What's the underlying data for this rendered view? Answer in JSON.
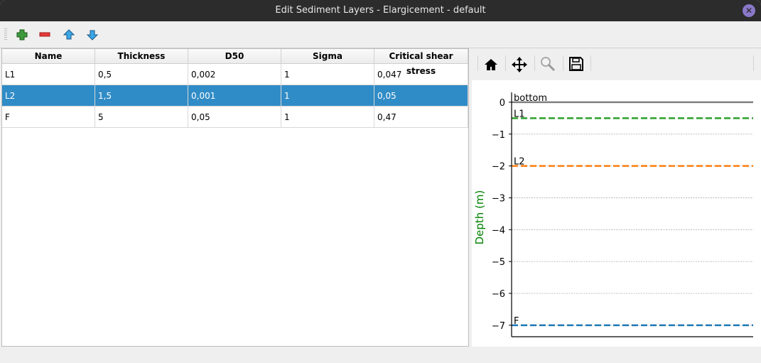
{
  "window": {
    "title": "Edit Sediment Layers - Elargicement - default"
  },
  "toolbar": {
    "icons": [
      "add-icon",
      "remove-icon",
      "move-up-icon",
      "move-down-icon"
    ]
  },
  "table": {
    "columns": [
      "Name",
      "Thickness",
      "D50",
      "Sigma",
      "Critical shear stress"
    ],
    "rows": [
      [
        "L1",
        "0,5",
        "0,002",
        "1",
        "0,047"
      ],
      [
        "L2",
        "1,5",
        "0,001",
        "1",
        "0,05"
      ],
      [
        "F",
        "5",
        "0,05",
        "1",
        "0,47"
      ]
    ],
    "selected_row": 1,
    "selection_color": "#308cc6"
  },
  "plot_toolbar": {
    "icons": [
      "home-icon",
      "pan-icon",
      "zoom-icon",
      "save-icon"
    ]
  },
  "chart_data": {
    "type": "line",
    "ylabel": "Depth (m)",
    "ylabel_color": "#008000",
    "ylim": [
      -7.36,
      0.31
    ],
    "yticks": [
      0,
      -1,
      -2,
      -3,
      -4,
      -5,
      -6,
      -7
    ],
    "ytick_labels": [
      "0",
      "−1",
      "−2",
      "−3",
      "−4",
      "−5",
      "−6",
      "−7"
    ],
    "grid": "horizontal dotted",
    "lines": [
      {
        "label": "bottom",
        "depth": 0,
        "color": "#808080",
        "style": "solid"
      },
      {
        "label": "L1",
        "depth": -0.5,
        "color": "#2ca02c",
        "style": "dashed"
      },
      {
        "label": "L2",
        "depth": -2,
        "color": "#ff7f0e",
        "style": "dashed"
      },
      {
        "label": "F",
        "depth": -7,
        "color": "#1f77b4",
        "style": "dashed"
      }
    ]
  }
}
